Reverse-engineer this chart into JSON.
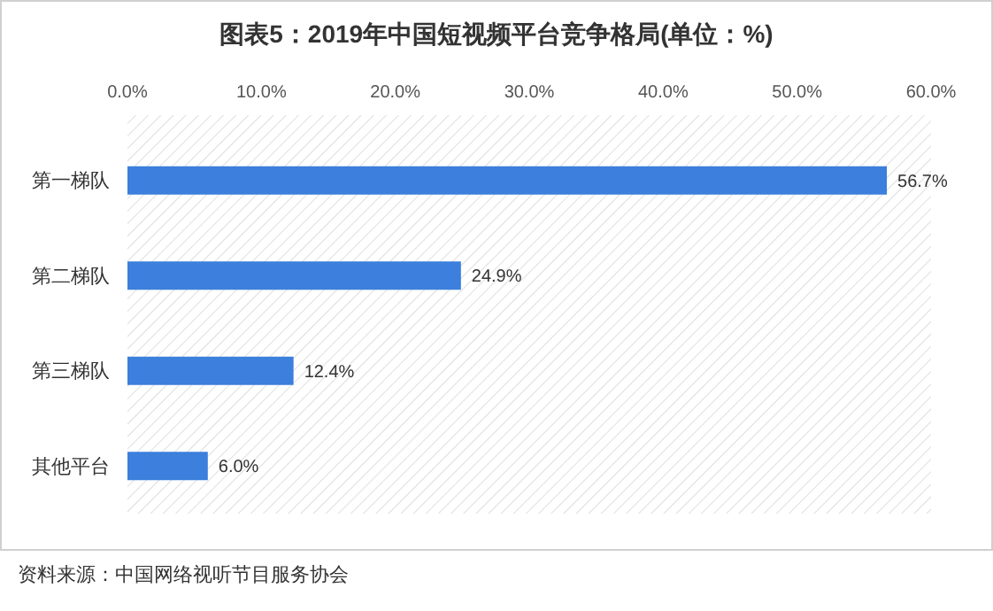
{
  "chart_data": {
    "type": "bar",
    "orientation": "horizontal",
    "title": "图表5：2019年中国短视频平台竞争格局(单位：%)",
    "categories": [
      "第一梯队",
      "第二梯队",
      "第三梯队",
      "其他平台"
    ],
    "values": [
      56.7,
      24.9,
      12.4,
      6.0
    ],
    "value_labels": [
      "56.7%",
      "24.9%",
      "12.4%",
      "6.0%"
    ],
    "color": "#3c7fdc",
    "xlim": [
      0,
      60
    ],
    "xticks": [
      {
        "value": 0,
        "label": "0.0%"
      },
      {
        "value": 10,
        "label": "10.0%"
      },
      {
        "value": 20,
        "label": "20.0%"
      },
      {
        "value": 30,
        "label": "30.0%"
      },
      {
        "value": 40,
        "label": "40.0%"
      },
      {
        "value": 50,
        "label": "50.0%"
      },
      {
        "value": 60,
        "label": "60.0%"
      }
    ],
    "annotations": [
      "资料来源：中国网络视听节目服务协会"
    ]
  }
}
